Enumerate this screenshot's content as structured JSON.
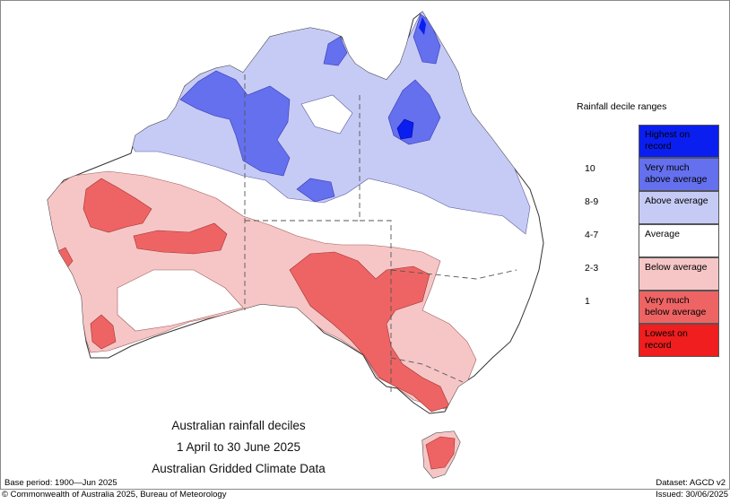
{
  "map": {
    "title_lines": [
      "Australian rainfall deciles",
      "1 April to 30 June 2025",
      "Australian Gridded Climate Data"
    ],
    "base_period": "Base period: 1900—Jun 2025",
    "dataset": "Dataset: AGCD v2",
    "copyright": "© Commonwealth of Australia 2025, Bureau of Meteorology",
    "issued": "Issued: 30/06/2025"
  },
  "legend": {
    "title": "Rainfall decile ranges",
    "items": [
      {
        "label": "Highest on record",
        "lines": [
          "Highest on",
          "record"
        ],
        "color": "#0a1ef0",
        "tick": ""
      },
      {
        "label": "Very much above average",
        "lines": [
          "Very much",
          "above average"
        ],
        "color": "#6470ee",
        "tick": "10"
      },
      {
        "label": "Above average",
        "lines": [
          "Above average"
        ],
        "color": "#c6cbf6",
        "tick": "8-9"
      },
      {
        "label": "Average",
        "lines": [
          "Average"
        ],
        "color": "#ffffff",
        "tick": "4-7"
      },
      {
        "label": "Below average",
        "lines": [
          "Below average"
        ],
        "color": "#f6c6c6",
        "tick": "2-3"
      },
      {
        "label": "Very much below average",
        "lines": [
          "Very much",
          "below average"
        ],
        "color": "#ee6464",
        "tick": "1"
      },
      {
        "label": "Lowest on record",
        "lines": [
          "Lowest on",
          "record"
        ],
        "color": "#f01e1e",
        "tick": ""
      }
    ]
  },
  "colors": {
    "highest": "#0a1ef0",
    "very_much_above": "#6470ee",
    "above": "#c6cbf6",
    "average": "#ffffff",
    "below": "#f6c6c6",
    "very_much_below": "#ee6464",
    "lowest": "#f01e1e"
  }
}
